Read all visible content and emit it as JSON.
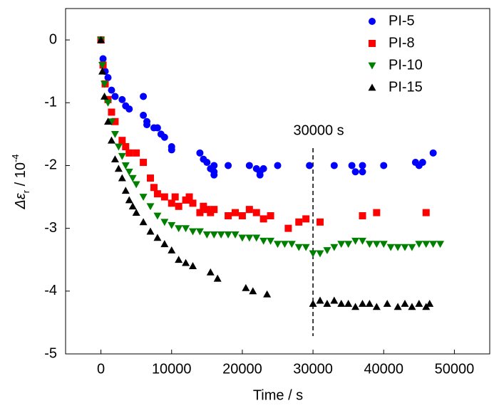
{
  "chart_data": {
    "type": "scatter",
    "xlabel": "Time / s",
    "ylabel": {
      "symbol": "Δε",
      "sub": "r",
      "text": " / 10",
      "sup": "-4"
    },
    "xlim": [
      -5000,
      55000
    ],
    "xticks": [
      0,
      10000,
      20000,
      30000,
      40000,
      50000
    ],
    "ylim": [
      -5,
      0.5
    ],
    "yticks": [
      0,
      -1,
      -2,
      -3,
      -4,
      -5
    ],
    "legend": "top-right",
    "annotations": [
      {
        "text": "30000 s",
        "x": 30000
      }
    ],
    "series": [
      {
        "name": "PI-5",
        "color": "#0000ff",
        "marker": "circle",
        "x": [
          0,
          300,
          600,
          1000,
          1500,
          2000,
          3000,
          3500,
          4000,
          6000,
          6000,
          6500,
          6500,
          7500,
          8000,
          8500,
          9000,
          10000,
          10000,
          14000,
          14500,
          15000,
          15500,
          16000,
          16000,
          16000,
          18000,
          21000,
          22000,
          22500,
          22500,
          23000,
          25000,
          29500,
          33000,
          35500,
          36000,
          37000,
          37000,
          40000,
          44500,
          45000,
          45500,
          47000
        ],
        "values": [
          0,
          -0.3,
          -0.5,
          -0.6,
          -0.8,
          -0.9,
          -0.95,
          -1.05,
          -1.1,
          -0.9,
          -1.2,
          -1.3,
          -1.35,
          -1.4,
          -1.4,
          -1.5,
          -1.55,
          -1.7,
          -1.75,
          -1.8,
          -1.9,
          -1.95,
          -2.05,
          -2.0,
          -2.1,
          -2.15,
          -2.0,
          -2.0,
          -2.05,
          -2.1,
          -2.15,
          -2.05,
          -2.0,
          -2.0,
          -2.0,
          -2.0,
          -2.1,
          -2.0,
          -2.1,
          -2.0,
          -1.95,
          -2.0,
          -1.95,
          -1.8
        ]
      },
      {
        "name": "PI-8",
        "color": "#ff0000",
        "marker": "square",
        "x": [
          0,
          300,
          600,
          1000,
          1500,
          2000,
          3000,
          3500,
          4000,
          5000,
          6000,
          7000,
          7500,
          8000,
          9000,
          10000,
          10500,
          11000,
          12000,
          12500,
          13000,
          14000,
          14500,
          15000,
          15500,
          16000,
          18000,
          19000,
          20000,
          21000,
          22000,
          23000,
          24000,
          26500,
          28000,
          29000,
          31000,
          37000,
          39000,
          46000
        ],
        "values": [
          0,
          -0.4,
          -0.7,
          -0.95,
          -1.15,
          -1.3,
          -1.6,
          -1.7,
          -1.8,
          -1.8,
          -1.95,
          -2.2,
          -2.35,
          -2.45,
          -2.5,
          -2.6,
          -2.5,
          -2.65,
          -2.55,
          -2.5,
          -2.6,
          -2.75,
          -2.65,
          -2.7,
          -2.75,
          -2.7,
          -2.8,
          -2.75,
          -2.8,
          -2.7,
          -2.75,
          -2.85,
          -2.8,
          -3.0,
          -2.9,
          -2.85,
          -2.9,
          -2.8,
          -2.75,
          -2.75
        ]
      },
      {
        "name": "PI-10",
        "color": "#008000",
        "marker": "triangle-down",
        "x": [
          0,
          200,
          500,
          1000,
          1500,
          2000,
          2500,
          3000,
          3500,
          4000,
          4500,
          5000,
          6000,
          7000,
          8000,
          9000,
          10000,
          11000,
          12000,
          13000,
          14000,
          15000,
          16000,
          17000,
          18000,
          19000,
          20000,
          21000,
          22000,
          23000,
          24000,
          25000,
          26000,
          27000,
          28000,
          29000,
          30000,
          31000,
          32000,
          33000,
          34000,
          35000,
          36000,
          37000,
          38000,
          39000,
          40000,
          41000,
          42000,
          43000,
          44000,
          45000,
          46000,
          47000,
          48000
        ],
        "values": [
          0,
          -0.4,
          -0.7,
          -1.0,
          -1.3,
          -1.5,
          -1.7,
          -1.85,
          -2.0,
          -2.1,
          -2.2,
          -2.3,
          -2.5,
          -2.65,
          -2.8,
          -2.9,
          -2.95,
          -3.0,
          -3.0,
          -3.05,
          -3.05,
          -3.1,
          -3.1,
          -3.1,
          -3.1,
          -3.1,
          -3.15,
          -3.15,
          -3.15,
          -3.2,
          -3.2,
          -3.25,
          -3.25,
          -3.25,
          -3.3,
          -3.3,
          -3.4,
          -3.4,
          -3.35,
          -3.3,
          -3.25,
          -3.25,
          -3.2,
          -3.2,
          -3.25,
          -3.25,
          -3.25,
          -3.3,
          -3.3,
          -3.3,
          -3.3,
          -3.25,
          -3.25,
          -3.25,
          -3.25
        ]
      },
      {
        "name": "PI-15",
        "color": "#000000",
        "marker": "triangle-up",
        "x": [
          0,
          200,
          500,
          1000,
          1500,
          2000,
          2500,
          3000,
          3500,
          4000,
          4500,
          5000,
          6000,
          7000,
          8000,
          9000,
          10000,
          11000,
          12000,
          13000,
          15500,
          16500,
          20500,
          21500,
          23500,
          30000,
          31000,
          32000,
          33000,
          34000,
          35000,
          36000,
          37000,
          38000,
          39000,
          40500,
          42000,
          43000,
          44000,
          45000,
          46000,
          46500
        ],
        "values": [
          0,
          -0.5,
          -0.9,
          -1.3,
          -1.6,
          -1.9,
          -2.05,
          -2.2,
          -2.4,
          -2.55,
          -2.65,
          -2.75,
          -2.9,
          -3.05,
          -3.15,
          -3.25,
          -3.35,
          -3.5,
          -3.55,
          -3.6,
          -3.7,
          -3.8,
          -3.95,
          -4.0,
          -4.05,
          -4.2,
          -4.15,
          -4.2,
          -4.15,
          -4.2,
          -4.2,
          -4.25,
          -4.2,
          -4.2,
          -4.25,
          -4.2,
          -4.25,
          -4.2,
          -4.25,
          -4.2,
          -4.25,
          -4.2
        ]
      }
    ]
  }
}
